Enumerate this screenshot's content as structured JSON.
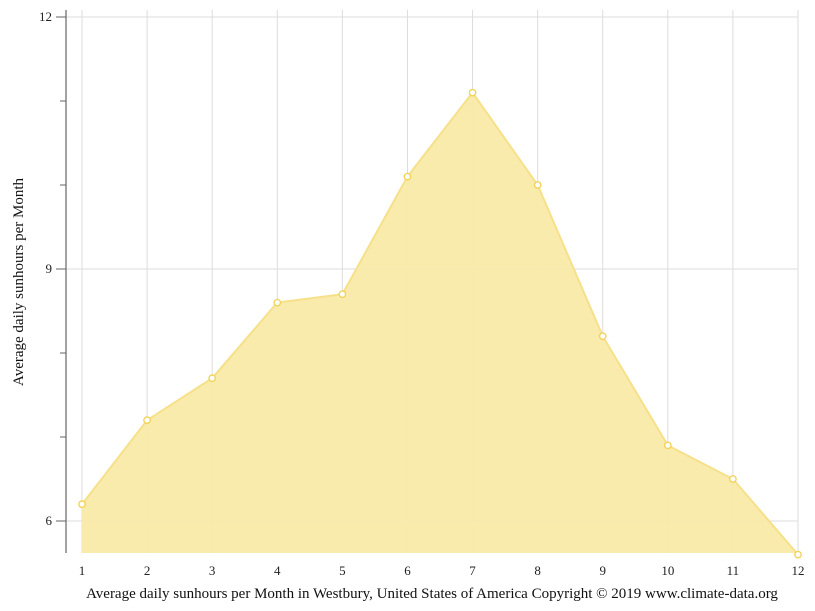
{
  "chart_data": {
    "type": "area",
    "title": "",
    "xlabel": "Average daily sunhours per Month in Westbury, United States of America Copyright © 2019 www.climate-data.org",
    "ylabel": "Average daily sunhours per Month",
    "categories": [
      "1",
      "2",
      "3",
      "4",
      "5",
      "6",
      "7",
      "8",
      "9",
      "10",
      "11",
      "12"
    ],
    "series": [
      {
        "name": "Average daily sunhours",
        "values": [
          6.2,
          7.2,
          7.7,
          8.6,
          8.7,
          10.1,
          11.1,
          10.0,
          8.2,
          6.9,
          6.5,
          5.6
        ]
      }
    ],
    "y_ticks": [
      6,
      9,
      12
    ],
    "y_minor_ticks": [
      7,
      8,
      10,
      11
    ],
    "ylim": [
      5.62,
      12
    ],
    "grid": true,
    "legend": "none",
    "colors": {
      "fill": "#f9eaa8",
      "line": "#f6e08a",
      "marker_stroke": "#f2d35a",
      "marker_fill": "#ffffff",
      "grid": "#dddddd",
      "axis": "#666666"
    }
  }
}
